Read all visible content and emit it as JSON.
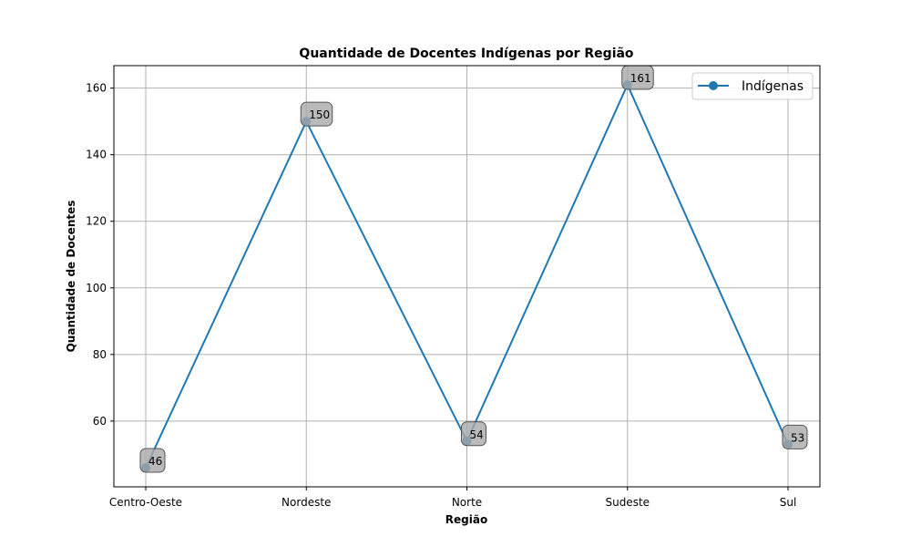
{
  "chart_data": {
    "type": "line",
    "title": "Quantidade de Docentes Indígenas por Região",
    "xlabel": "Região",
    "ylabel": "Quantidade de Docentes",
    "categories": [
      "Centro-Oeste",
      "Nordeste",
      "Norte",
      "Sudeste",
      "Sul"
    ],
    "series": [
      {
        "name": "Indígenas",
        "values": [
          46,
          150,
          54,
          161,
          53
        ],
        "color": "#1f77b4"
      }
    ],
    "ylim": [
      40.25,
      166.75
    ],
    "yticks": [
      60,
      80,
      100,
      120,
      140,
      160
    ],
    "grid": true,
    "legend": "top-right",
    "data_labels": true,
    "label_box_color": "#a9a9a9"
  }
}
